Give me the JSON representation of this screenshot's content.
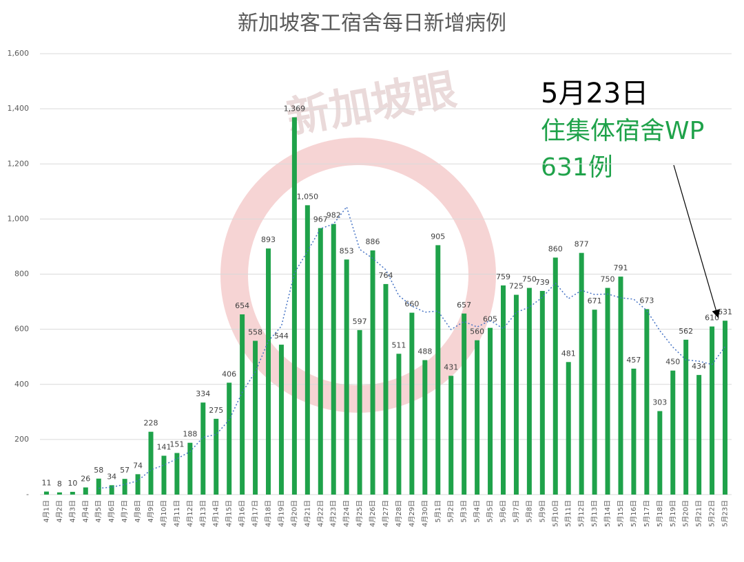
{
  "chart_data": {
    "type": "bar",
    "title": "新加坡客工宿舍每日新增病例",
    "watermark": "新加坡眼",
    "annotation": {
      "date": "5月23日",
      "line1": "住集体宿舍WP",
      "line2": "631例"
    },
    "categories": [
      "4月1日",
      "4月2日",
      "4月3日",
      "4月4日",
      "4月5日",
      "4月6日",
      "4月7日",
      "4月8日",
      "4月9日",
      "4月10日",
      "4月11日",
      "4月12日",
      "4月13日",
      "4月14日",
      "4月15日",
      "4月16日",
      "4月17日",
      "4月18日",
      "4月19日",
      "4月20日",
      "4月21日",
      "4月22日",
      "4月23日",
      "4月24日",
      "4月25日",
      "4月26日",
      "4月27日",
      "4月28日",
      "4月29日",
      "4月30日",
      "5月1日",
      "5月2日",
      "5月3日",
      "5月4日",
      "5月5日",
      "5月6日",
      "5月7日",
      "5月8日",
      "5月9日",
      "5月10日",
      "5月11日",
      "5月12日",
      "5月13日",
      "5月14日",
      "5月15日",
      "5月16日",
      "5月17日",
      "5月18日",
      "5月19日",
      "5月20日",
      "5月21日",
      "5月22日",
      "5月23日"
    ],
    "series": [
      {
        "type": "bar",
        "color": "#1fa24a",
        "values": [
          11,
          8,
          10,
          26,
          58,
          34,
          57,
          74,
          228,
          141,
          151,
          188,
          334,
          275,
          406,
          654,
          558,
          893,
          544,
          1369,
          1050,
          967,
          982,
          853,
          597,
          886,
          764,
          511,
          660,
          488,
          905,
          431,
          657,
          560,
          605,
          759,
          725,
          750,
          739,
          860,
          481,
          877,
          671,
          750,
          791,
          457,
          673,
          303,
          450,
          562,
          434,
          610,
          631
        ],
        "value_labels": [
          "11",
          "8",
          "10",
          "26",
          "58",
          "34",
          "57",
          "74",
          "228",
          "141",
          "151",
          "188",
          "334",
          "275",
          "406",
          "654",
          "558",
          "893",
          "544",
          "1,369",
          "1,050",
          "967",
          "982",
          "853",
          "597",
          "886",
          "764",
          "511",
          "660",
          "488",
          "905",
          "431",
          "657",
          "560",
          "605",
          "759",
          "725",
          "750",
          "739",
          "860",
          "481",
          "877",
          "671",
          "750",
          "791",
          "457",
          "673",
          "303",
          "450",
          "562",
          "434",
          "610",
          "631"
        ]
      },
      {
        "type": "line",
        "color": "#4472c4",
        "dash": true,
        "values": [
          null,
          null,
          null,
          null,
          23,
          27,
          37,
          50,
          90,
          107,
          130,
          156,
          208,
          218,
          271,
          371,
          445,
          557,
          611,
          804,
          883,
          965,
          982,
          1044,
          890,
          857,
          816,
          722,
          684,
          662,
          666,
          599,
          628,
          608,
          632,
          602,
          661,
          680,
          716,
          767,
          711,
          741,
          726,
          728,
          714,
          709,
          668,
          595,
          535,
          489,
          484,
          472,
          537
        ]
      }
    ],
    "ylim": [
      0,
      1600
    ],
    "yticks": [
      {
        "value": 0,
        "label": "-"
      },
      200,
      400,
      600,
      800,
      {
        "value": 1000,
        "label": "1,000"
      },
      {
        "value": 1200,
        "label": "1,200"
      },
      {
        "value": 1400,
        "label": "1,400"
      },
      {
        "value": 1600,
        "label": "1,600"
      }
    ],
    "grid": true
  }
}
